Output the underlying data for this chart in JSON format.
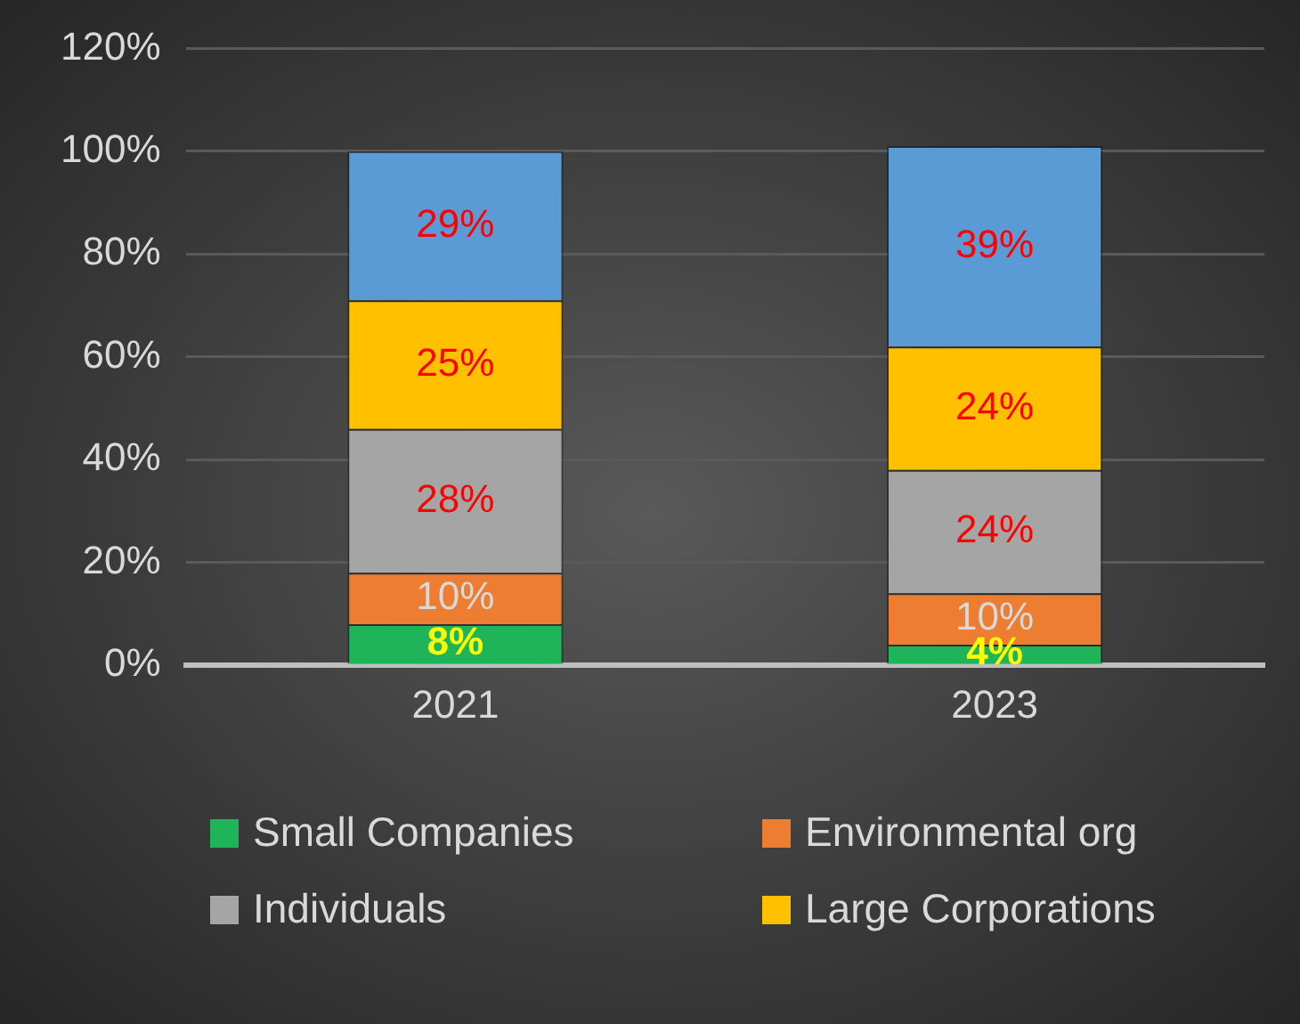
{
  "chart_data": {
    "type": "bar",
    "stacked": true,
    "categories": [
      "2021",
      "2023"
    ],
    "series": [
      {
        "name": "Small Companies",
        "color": "#1fb35a",
        "values": [
          8,
          4
        ],
        "value_labels": [
          "8%",
          "4%"
        ]
      },
      {
        "name": "Environmental org",
        "color": "#ed7d31",
        "values": [
          10,
          10
        ],
        "value_labels": [
          "10%",
          "10%"
        ]
      },
      {
        "name": "Individuals",
        "color": "#a5a5a5",
        "values": [
          28,
          24
        ],
        "value_labels": [
          "28%",
          "24%"
        ]
      },
      {
        "name": "Large Corporations",
        "color": "#ffc000",
        "values": [
          25,
          24
        ],
        "value_labels": [
          "25%",
          "24%"
        ]
      },
      {
        "color": "#5b9bd5",
        "values": [
          29,
          39
        ],
        "value_labels": [
          "29%",
          "39%"
        ]
      }
    ],
    "ylim": [
      0,
      120
    ],
    "yticks": [
      {
        "value": 0,
        "label": "0%"
      },
      {
        "value": 20,
        "label": "20%"
      },
      {
        "value": 40,
        "label": "40%"
      },
      {
        "value": 60,
        "label": "60%"
      },
      {
        "value": 80,
        "label": "80%"
      },
      {
        "value": 100,
        "label": "100%"
      },
      {
        "value": 120,
        "label": "120%"
      }
    ],
    "grid": "y",
    "legend": "bottom"
  }
}
